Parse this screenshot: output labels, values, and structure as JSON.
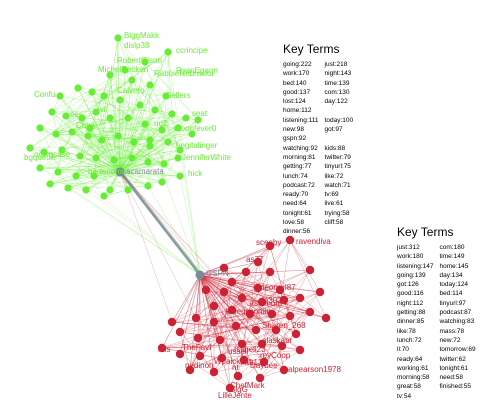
{
  "clusters": {
    "green": {
      "hub": "acamarata",
      "labels": [
        "BiggMakk",
        "ccrincipe",
        "RobertOlson",
        "MichelRecken",
        "RabbieNebraska",
        "Confu",
        "ees",
        "Sellers",
        "seat",
        "Chhal",
        "moonfever0",
        "hegitalinger",
        "bgqueue",
        "JenniferWhite",
        "bartonomus",
        "hick",
        "dislp38",
        "RyanEgann",
        "Calvero",
        "ivi",
        "nd2",
        "nowgcase"
      ]
    },
    "red": {
      "hub": "GSPN",
      "labels": [
        "sceeby",
        "ravendiva",
        "as77",
        "neongrl87",
        "ie302",
        "itsiamom",
        "kthegscomin",
        "Sharen_268",
        "alaskabr",
        "Isshell23",
        "reyCoop",
        "ussell",
        "raft13",
        "TheFavf",
        "mis",
        "Wpaickpin",
        "nt",
        "ChefMark",
        "nedinoh",
        "BigG",
        "Daybee",
        "alpearson1978",
        "LilleJente"
      ]
    }
  },
  "key_terms_top": {
    "title": "Key Terms",
    "columns": [
      [
        "going:222",
        "work:170",
        "bed:140",
        "good:137",
        "lost:124",
        "home:112",
        "listening:111",
        "new:98",
        "gspn:92",
        "watching:92",
        "morning:81",
        "getting:77",
        "lunch:74",
        "podcast:72",
        "ready:70",
        "need:64",
        "tonight:61",
        "love:58",
        "dinner:56"
      ],
      [
        "just:218",
        "night:143",
        "time:139",
        "com:130",
        "day:122",
        "",
        "today:100",
        "got:97",
        "",
        "kids:88",
        "twitter:79",
        "tinyurl:75",
        "like:72",
        "watch:71",
        "tv:69",
        "live:61",
        "trying:58",
        "cliff:58"
      ]
    ]
  },
  "key_terms_bottom": {
    "title": "Key Terms",
    "columns": [
      [
        "just:312",
        "work:180",
        "listening:147",
        "going:139",
        "got:126",
        "good:116",
        "night:112",
        "getting:88",
        "dinner:85",
        "like:78",
        "lunch:72",
        "ll:70",
        "ready:64",
        "working:61",
        "morning:58",
        "great:58",
        "tv:54"
      ],
      [
        "com:180",
        "time:149",
        "home:145",
        "day:134",
        "today:124",
        "bed:114",
        "tinyurl:97",
        "podcast:87",
        "watching:83",
        "mass:78",
        "new:72",
        "tomorrow:69",
        "twitter:62",
        "tonight:61",
        "need:58",
        "finished:55"
      ]
    ]
  }
}
